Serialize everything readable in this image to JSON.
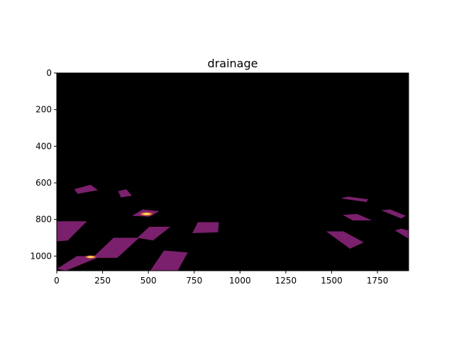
{
  "chart_data": {
    "type": "heatmap",
    "title": "drainage",
    "xlabel": "",
    "ylabel": "",
    "xlim": [
      0,
      1920
    ],
    "ylim": [
      1080,
      0
    ],
    "x_ticks": [
      0,
      250,
      500,
      750,
      1000,
      1250,
      1500,
      1750
    ],
    "y_ticks": [
      0,
      200,
      400,
      600,
      800,
      1000
    ],
    "x_tick_labels": [
      "0",
      "250",
      "500",
      "750",
      "1000",
      "1250",
      "1500",
      "1750"
    ],
    "y_tick_labels": [
      "0",
      "200",
      "400",
      "600",
      "800",
      "1000"
    ],
    "colormap": "inferno",
    "background_color": "#000000",
    "patch_color": "#7a206c",
    "regions": [
      {
        "points": [
          [
            95,
            635
          ],
          [
            185,
            610
          ],
          [
            225,
            640
          ],
          [
            115,
            660
          ]
        ]
      },
      {
        "points": [
          [
            335,
            645
          ],
          [
            380,
            635
          ],
          [
            410,
            670
          ],
          [
            350,
            680
          ]
        ]
      },
      {
        "points": [
          [
            410,
            780
          ],
          [
            470,
            745
          ],
          [
            560,
            755
          ],
          [
            505,
            785
          ]
        ]
      },
      {
        "points": [
          [
            0,
            810
          ],
          [
            165,
            810
          ],
          [
            60,
            915
          ],
          [
            0,
            920
          ]
        ]
      },
      {
        "points": [
          [
            440,
            900
          ],
          [
            505,
            840
          ],
          [
            620,
            840
          ],
          [
            525,
            915
          ]
        ]
      },
      {
        "points": [
          [
            310,
            900
          ],
          [
            450,
            900
          ],
          [
            330,
            1010
          ],
          [
            195,
            1010
          ]
        ]
      },
      {
        "points": [
          [
            0,
            1070
          ],
          [
            110,
            1000
          ],
          [
            245,
            1000
          ],
          [
            50,
            1080
          ]
        ]
      },
      {
        "points": [
          [
            510,
            1080
          ],
          [
            585,
            970
          ],
          [
            715,
            980
          ],
          [
            660,
            1080
          ]
        ]
      },
      {
        "points": [
          [
            770,
            815
          ],
          [
            885,
            815
          ],
          [
            880,
            870
          ],
          [
            740,
            875
          ]
        ]
      },
      {
        "points": [
          [
            1550,
            685
          ],
          [
            1590,
            675
          ],
          [
            1700,
            690
          ],
          [
            1690,
            705
          ]
        ]
      },
      {
        "points": [
          [
            1560,
            775
          ],
          [
            1640,
            770
          ],
          [
            1720,
            805
          ],
          [
            1615,
            805
          ]
        ]
      },
      {
        "points": [
          [
            1770,
            750
          ],
          [
            1820,
            745
          ],
          [
            1905,
            780
          ],
          [
            1880,
            795
          ]
        ]
      },
      {
        "points": [
          [
            1470,
            865
          ],
          [
            1565,
            865
          ],
          [
            1675,
            925
          ],
          [
            1600,
            960
          ]
        ]
      },
      {
        "points": [
          [
            1845,
            860
          ],
          [
            1880,
            850
          ],
          [
            1920,
            860
          ],
          [
            1920,
            905
          ]
        ]
      }
    ],
    "hotspots": [
      {
        "x": 490,
        "y": 770,
        "intensity": 1.0
      },
      {
        "x": 185,
        "y": 1005,
        "intensity": 0.75
      }
    ]
  }
}
